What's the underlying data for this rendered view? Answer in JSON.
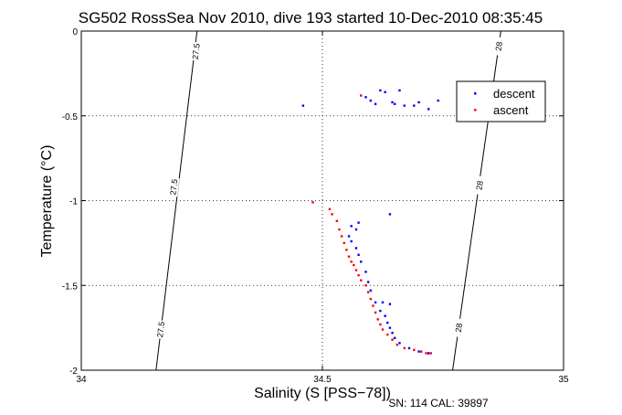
{
  "chart_data": {
    "type": "scatter",
    "title": "SG502 RossSea Nov 2010, dive 193 started 10-Dec-2010 08:35:45",
    "xlabel": "Salinity (S [PSS−78])",
    "ylabel": "Temperature (°C)",
    "xlim": [
      34,
      35
    ],
    "ylim": [
      -2,
      0
    ],
    "xticks": [
      34,
      34.5,
      35
    ],
    "xtick_labels": [
      "34",
      "34.5",
      "35"
    ],
    "yticks": [
      0,
      -0.5,
      -1,
      -1.5,
      -2
    ],
    "ytick_labels": [
      "0",
      "-0.5",
      "-1",
      "-1.5",
      "-2"
    ],
    "grid": true,
    "legend_position": "top-right",
    "footnote": "SN: 114  CAL: 39897",
    "density_contours": [
      {
        "points": [
          [
            34.155,
            -2.0
          ],
          [
            34.24,
            0.0
          ]
        ],
        "labels": [
          {
            "text": "27.5",
            "at": [
              34.238,
              -0.12
            ]
          },
          {
            "text": "27.5",
            "at": [
              34.192,
              -0.92
            ]
          },
          {
            "text": "27.5",
            "at": [
              34.165,
              -1.76
            ]
          }
        ]
      },
      {
        "points": [
          [
            34.77,
            -2.0
          ],
          [
            34.87,
            0.0
          ]
        ],
        "labels": [
          {
            "text": "28",
            "at": [
              34.866,
              -0.09
            ]
          },
          {
            "text": "28",
            "at": [
              34.826,
              -0.91
            ]
          },
          {
            "text": "28",
            "at": [
              34.783,
              -1.75
            ]
          }
        ]
      }
    ],
    "series": [
      {
        "name": "descent",
        "color": "#0000ff",
        "points": [
          [
            34.46,
            -0.44
          ],
          [
            34.59,
            -0.39
          ],
          [
            34.6,
            -0.41
          ],
          [
            34.61,
            -0.43
          ],
          [
            34.62,
            -0.35
          ],
          [
            34.63,
            -0.36
          ],
          [
            34.645,
            -0.42
          ],
          [
            34.65,
            -0.43
          ],
          [
            34.66,
            -0.35
          ],
          [
            34.67,
            -0.44
          ],
          [
            34.69,
            -0.44
          ],
          [
            34.7,
            -0.42
          ],
          [
            34.72,
            -0.46
          ],
          [
            34.74,
            -0.41
          ],
          [
            34.64,
            -1.08
          ],
          [
            34.575,
            -1.13
          ],
          [
            34.56,
            -1.15
          ],
          [
            34.57,
            -1.17
          ],
          [
            34.555,
            -1.21
          ],
          [
            34.56,
            -1.24
          ],
          [
            34.57,
            -1.28
          ],
          [
            34.575,
            -1.32
          ],
          [
            34.58,
            -1.36
          ],
          [
            34.59,
            -1.42
          ],
          [
            34.595,
            -1.48
          ],
          [
            34.6,
            -1.53
          ],
          [
            34.61,
            -1.6
          ],
          [
            34.625,
            -1.6
          ],
          [
            34.64,
            -1.61
          ],
          [
            34.62,
            -1.65
          ],
          [
            34.63,
            -1.68
          ],
          [
            34.635,
            -1.72
          ],
          [
            34.64,
            -1.75
          ],
          [
            34.645,
            -1.78
          ],
          [
            34.65,
            -1.81
          ],
          [
            34.66,
            -1.84
          ],
          [
            34.68,
            -1.87
          ],
          [
            34.7,
            -1.89
          ],
          [
            34.72,
            -1.9
          ]
        ]
      },
      {
        "name": "ascent",
        "color": "#ff0000",
        "points": [
          [
            34.58,
            -0.38
          ],
          [
            34.48,
            -1.01
          ],
          [
            34.515,
            -1.05
          ],
          [
            34.52,
            -1.08
          ],
          [
            34.53,
            -1.12
          ],
          [
            34.535,
            -1.17
          ],
          [
            34.54,
            -1.21
          ],
          [
            34.545,
            -1.25
          ],
          [
            34.55,
            -1.29
          ],
          [
            34.555,
            -1.33
          ],
          [
            34.56,
            -1.36
          ],
          [
            34.565,
            -1.38
          ],
          [
            34.57,
            -1.41
          ],
          [
            34.575,
            -1.44
          ],
          [
            34.58,
            -1.47
          ],
          [
            34.59,
            -1.5
          ],
          [
            34.595,
            -1.54
          ],
          [
            34.6,
            -1.58
          ],
          [
            34.605,
            -1.62
          ],
          [
            34.61,
            -1.66
          ],
          [
            34.615,
            -1.7
          ],
          [
            34.62,
            -1.73
          ],
          [
            34.625,
            -1.76
          ],
          [
            34.635,
            -1.79
          ],
          [
            34.645,
            -1.82
          ],
          [
            34.655,
            -1.85
          ],
          [
            34.67,
            -1.87
          ],
          [
            34.69,
            -1.88
          ],
          [
            34.705,
            -1.89
          ],
          [
            34.715,
            -1.9
          ],
          [
            34.725,
            -1.9
          ]
        ]
      }
    ]
  }
}
